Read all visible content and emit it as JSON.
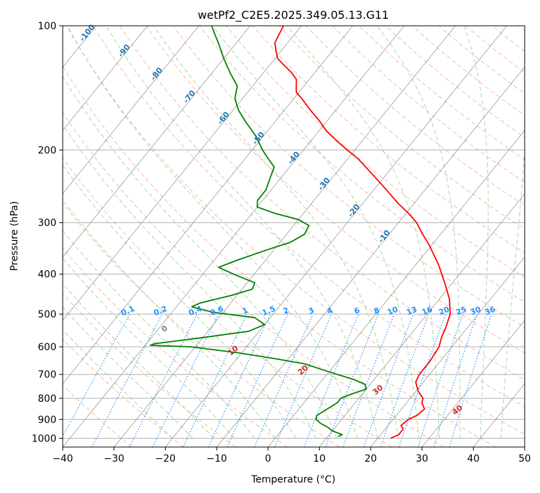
{
  "chart_data": {
    "type": "line",
    "title": "wetPf2_C2E5.2025.349.05.13.G11",
    "xlabel": "Temperature (°C)",
    "ylabel": "Pressure (hPa)",
    "xlim": [
      -40,
      50
    ],
    "ylim": [
      1050,
      100
    ],
    "y_scale": "log",
    "x_ticks": [
      -40,
      -30,
      -20,
      -10,
      0,
      10,
      20,
      30,
      40,
      50
    ],
    "x_tick_labels": [
      "−40",
      "−30",
      "−20",
      "−10",
      "0",
      "10",
      "20",
      "30",
      "40",
      "50"
    ],
    "y_ticks": [
      100,
      200,
      300,
      400,
      500,
      600,
      700,
      800,
      900,
      1000
    ],
    "y_tick_labels": [
      "100",
      "200",
      "300",
      "400",
      "500",
      "600",
      "700",
      "800",
      "900",
      "1000"
    ],
    "grid": true,
    "series": [
      {
        "color": "#ff0000",
        "points": [
          [
            1000,
            22.5
          ],
          [
            980,
            23.5
          ],
          [
            950,
            23.5
          ],
          [
            930,
            22.5
          ],
          [
            900,
            23.0
          ],
          [
            880,
            24.0
          ],
          [
            850,
            24.5
          ],
          [
            820,
            23.0
          ],
          [
            800,
            22.5
          ],
          [
            770,
            20.5
          ],
          [
            750,
            19.5
          ],
          [
            730,
            18.5
          ],
          [
            700,
            18.0
          ],
          [
            650,
            18.0
          ],
          [
            600,
            17.5
          ],
          [
            570,
            16.5
          ],
          [
            540,
            15.8
          ],
          [
            500,
            14.5
          ],
          [
            460,
            12.0
          ],
          [
            420,
            8.5
          ],
          [
            380,
            4.5
          ],
          [
            340,
            -0.5
          ],
          [
            320,
            -3.5
          ],
          [
            300,
            -6.5
          ],
          [
            285,
            -9.5
          ],
          [
            270,
            -13.0
          ],
          [
            250,
            -17.5
          ],
          [
            230,
            -22.5
          ],
          [
            210,
            -28.0
          ],
          [
            200,
            -31.5
          ],
          [
            190,
            -35.0
          ],
          [
            180,
            -38.5
          ],
          [
            170,
            -41.5
          ],
          [
            160,
            -45.0
          ],
          [
            150,
            -48.5
          ],
          [
            145,
            -50.5
          ],
          [
            140,
            -51.5
          ],
          [
            135,
            -52.5
          ],
          [
            130,
            -54.5
          ],
          [
            125,
            -57.0
          ],
          [
            120,
            -59.5
          ],
          [
            115,
            -61.0
          ],
          [
            110,
            -62.5
          ],
          [
            105,
            -63.0
          ],
          [
            100,
            -63.5
          ]
        ]
      },
      {
        "color": "#008000",
        "points": [
          [
            990,
            12.0
          ],
          [
            980,
            12.5
          ],
          [
            960,
            10.0
          ],
          [
            940,
            8.5
          ],
          [
            920,
            6.5
          ],
          [
            900,
            5.0
          ],
          [
            880,
            4.5
          ],
          [
            850,
            5.5
          ],
          [
            820,
            6.5
          ],
          [
            800,
            6.5
          ],
          [
            780,
            8.0
          ],
          [
            760,
            10.0
          ],
          [
            740,
            9.0
          ],
          [
            720,
            6.0
          ],
          [
            700,
            2.0
          ],
          [
            680,
            -2.0
          ],
          [
            660,
            -6.0
          ],
          [
            640,
            -13.0
          ],
          [
            620,
            -21.0
          ],
          [
            600,
            -31.0
          ],
          [
            595,
            -39.0
          ],
          [
            590,
            -38.5
          ],
          [
            570,
            -30.0
          ],
          [
            550,
            -22.0
          ],
          [
            530,
            -20.0
          ],
          [
            510,
            -23.0
          ],
          [
            495,
            -32.0
          ],
          [
            480,
            -37.0
          ],
          [
            470,
            -36.0
          ],
          [
            450,
            -31.0
          ],
          [
            435,
            -28.0
          ],
          [
            420,
            -28.5
          ],
          [
            400,
            -34.0
          ],
          [
            385,
            -38.0
          ],
          [
            370,
            -35.5
          ],
          [
            350,
            -31.5
          ],
          [
            335,
            -28.0
          ],
          [
            320,
            -26.5
          ],
          [
            305,
            -27.0
          ],
          [
            295,
            -30.0
          ],
          [
            285,
            -35.5
          ],
          [
            275,
            -40.0
          ],
          [
            265,
            -41.0
          ],
          [
            250,
            -41.0
          ],
          [
            235,
            -42.0
          ],
          [
            220,
            -43.0
          ],
          [
            210,
            -45.5
          ],
          [
            200,
            -48.0
          ],
          [
            185,
            -51.5
          ],
          [
            170,
            -56.0
          ],
          [
            160,
            -59.0
          ],
          [
            150,
            -61.5
          ],
          [
            140,
            -63.0
          ],
          [
            130,
            -66.5
          ],
          [
            120,
            -70.0
          ],
          [
            110,
            -73.5
          ],
          [
            105,
            -75.5
          ],
          [
            100,
            -77.5
          ]
        ]
      }
    ],
    "isotherm_labels": [
      "-100",
      "-90",
      "-80",
      "-70",
      "-60",
      "-50",
      "-40",
      "-30",
      "-20",
      "-10"
    ],
    "mixing_ratio_labels": [
      "0.1",
      "0.2",
      "0.4",
      "0.6",
      "1",
      "1.5",
      "2",
      "3",
      "4",
      "6",
      "8",
      "10",
      "13",
      "16",
      "20",
      "25",
      "30",
      "36"
    ],
    "dry_adiabat_labels": [
      "0",
      "10",
      "20",
      "30",
      "40"
    ],
    "colors": {
      "temperature": "#ff0000",
      "dewpoint": "#008000",
      "dry_adiabat": "#f5a08a",
      "moist_adiabat": "#8fcf8f",
      "mixing_ratio": "#1e90ff",
      "isotherm": "#808080",
      "isotherm_label": "#1f77b4",
      "dry_adiabat_label": "#d62728",
      "mixing_ratio_label": "#1e90ff"
    }
  }
}
